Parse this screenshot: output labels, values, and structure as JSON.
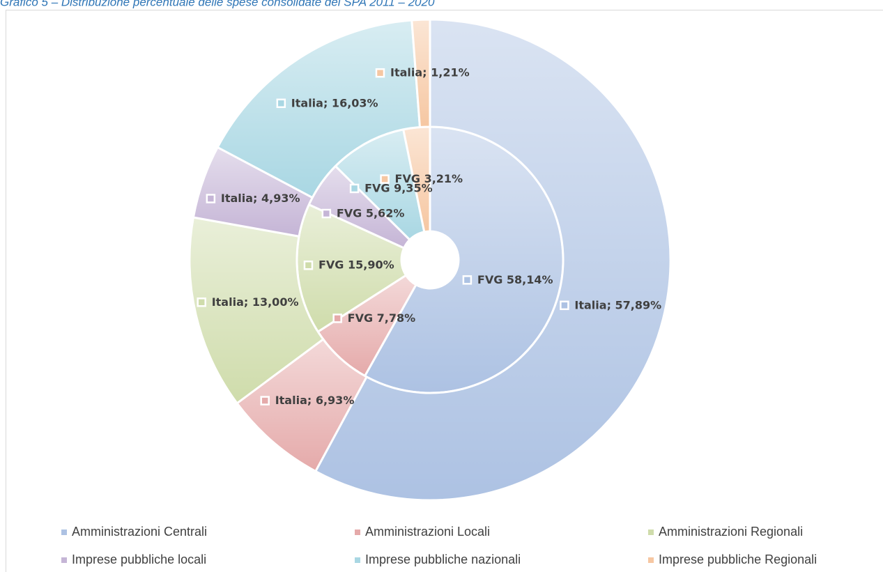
{
  "chart_data": {
    "type": "pie",
    "title": "Grafico 5 – Distribuzione percentuale delle spese consolidate del SPA 2011 – 2020",
    "categories": [
      "Amministrazioni Centrali",
      "Amministrazioni Locali",
      "Amministrazioni Regionali",
      "Imprese pubbliche locali",
      "Imprese pubbliche nazionali",
      "Imprese pubbliche Regionali"
    ],
    "colors": [
      "#adc2e3",
      "#e5aaaa",
      "#cfdcab",
      "#c5b5d6",
      "#a9d7e3",
      "#f6c7a2"
    ],
    "series": [
      {
        "name": "FVG",
        "values": [
          58.14,
          7.78,
          15.9,
          5.62,
          9.35,
          3.21
        ],
        "value_labels": [
          "FVG 58,14%",
          "FVG 7,78%",
          "FVG 15,90%",
          "FVG 5,62%",
          "FVG 9,35%",
          "FVG 3,21%"
        ]
      },
      {
        "name": "Italia",
        "values": [
          57.89,
          6.93,
          13.0,
          4.93,
          16.03,
          1.21
        ],
        "value_labels": [
          "Italia; 57,89%",
          "Italia; 6,93%",
          "Italia; 13,00%",
          "Italia; 4,93%",
          "Italia; 16,03%",
          "Italia; 1,21%"
        ]
      }
    ],
    "legend": "bottom"
  }
}
